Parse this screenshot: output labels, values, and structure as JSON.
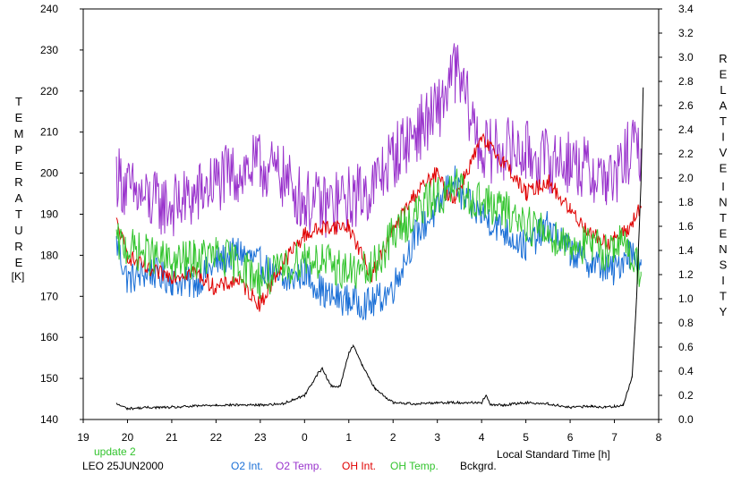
{
  "chart_data": {
    "type": "line",
    "xlabel": "Local Standard Time [h]",
    "ylabel_left": "TEMPERATURE",
    "ylabel_left_unit": "[K]",
    "ylabel_right": "RELATIVE INTENSITY",
    "x_range": [
      19,
      8
    ],
    "x_ticks": [
      "19",
      "20",
      "21",
      "22",
      "23",
      "0",
      "1",
      "2",
      "3",
      "4",
      "5",
      "6",
      "7",
      "8"
    ],
    "y_left_range": [
      140,
      240
    ],
    "y_left_ticks": [
      "140",
      "150",
      "160",
      "170",
      "180",
      "190",
      "200",
      "210",
      "220",
      "230",
      "240"
    ],
    "y_right_range": [
      0.0,
      3.4
    ],
    "y_right_ticks": [
      "0.0",
      "0.2",
      "0.4",
      "0.6",
      "0.8",
      "1.0",
      "1.2",
      "1.4",
      "1.6",
      "1.8",
      "2.0",
      "2.2",
      "2.4",
      "2.6",
      "2.8",
      "3.0",
      "3.2",
      "3.4"
    ],
    "grid": false,
    "annotations": {
      "update": "update 2",
      "station": "LEO 25JUN2000"
    },
    "series": [
      {
        "name": "O2 Int.",
        "color": "#1a6fd6",
        "axis": "left",
        "x": [
          19.75,
          20.0,
          20.5,
          21.0,
          21.5,
          22.0,
          22.5,
          23.0,
          23.5,
          24.0,
          24.5,
          25.0,
          25.5,
          26.0,
          26.5,
          27.0,
          27.2,
          27.4,
          27.6,
          28.0,
          28.5,
          29.0,
          29.5,
          30.0,
          30.5,
          30.8,
          31.0,
          31.3,
          31.6
        ],
        "y": [
          183,
          174,
          176,
          174,
          173,
          178,
          181,
          178,
          173,
          176,
          170,
          169,
          168,
          172,
          185,
          191,
          196,
          198,
          193,
          190,
          186,
          182,
          187,
          181,
          178,
          177,
          176,
          181,
          179
        ],
        "noise": 4
      },
      {
        "name": "O2 Temp.",
        "color": "#9933cc",
        "axis": "left",
        "x": [
          19.75,
          20.0,
          20.5,
          21.0,
          21.5,
          22.0,
          22.5,
          23.0,
          23.5,
          24.0,
          24.5,
          25.0,
          25.5,
          26.0,
          26.5,
          27.0,
          27.2,
          27.4,
          27.6,
          28.0,
          28.5,
          29.0,
          29.5,
          30.0,
          30.5,
          30.8,
          31.0,
          31.3,
          31.6
        ],
        "y": [
          200,
          196,
          193,
          192,
          194,
          198,
          200,
          202,
          199,
          193,
          192,
          194,
          196,
          204,
          210,
          215,
          220,
          225,
          220,
          205,
          206,
          205,
          203,
          203,
          200,
          199,
          198,
          205,
          206
        ],
        "noise": 8
      },
      {
        "name": "OH Int.",
        "color": "#e00000",
        "axis": "left",
        "x": [
          19.75,
          20.0,
          20.5,
          21.0,
          21.5,
          22.0,
          22.5,
          23.0,
          23.5,
          24.0,
          24.5,
          25.0,
          25.5,
          26.0,
          26.5,
          27.0,
          27.2,
          27.4,
          27.6,
          28.0,
          28.5,
          29.0,
          29.5,
          30.0,
          30.5,
          30.8,
          31.0,
          31.3,
          31.6
        ],
        "y": [
          188,
          180,
          176,
          175,
          176,
          172,
          174,
          168,
          178,
          185,
          187,
          187,
          175,
          186,
          195,
          200,
          195,
          194,
          199,
          208,
          203,
          195,
          198,
          191,
          185,
          183,
          184,
          186,
          192
        ],
        "noise": 2
      },
      {
        "name": "OH Temp.",
        "color": "#33c42e",
        "axis": "left",
        "x": [
          19.75,
          20.0,
          20.5,
          21.0,
          21.5,
          22.0,
          22.5,
          23.0,
          23.5,
          24.0,
          24.5,
          25.0,
          25.5,
          26.0,
          26.5,
          27.0,
          27.2,
          27.4,
          27.6,
          28.0,
          28.5,
          29.0,
          29.5,
          30.0,
          30.5,
          30.8,
          31.0,
          31.3,
          31.6
        ],
        "y": [
          183,
          182,
          180,
          178,
          179,
          180,
          178,
          174,
          176,
          180,
          178,
          176,
          176,
          185,
          190,
          195,
          194,
          197,
          195,
          193,
          191,
          188,
          185,
          183,
          182,
          181,
          183,
          182,
          176
        ],
        "noise": 5
      },
      {
        "name": "Bckgrd.",
        "color": "#000000",
        "axis": "right",
        "x": [
          19.75,
          20.0,
          20.5,
          21.0,
          21.5,
          22.0,
          22.5,
          23.0,
          23.5,
          24.0,
          24.3,
          24.4,
          24.6,
          24.8,
          25.0,
          25.1,
          25.3,
          25.6,
          26.0,
          26.5,
          27.0,
          27.5,
          28.0,
          28.1,
          28.2,
          28.5,
          29.0,
          29.5,
          30.0,
          30.5,
          30.8,
          31.0,
          31.2,
          31.4,
          31.5,
          31.6,
          31.65
        ],
        "y": [
          0.13,
          0.09,
          0.1,
          0.1,
          0.11,
          0.12,
          0.12,
          0.12,
          0.13,
          0.2,
          0.38,
          0.42,
          0.28,
          0.27,
          0.55,
          0.62,
          0.45,
          0.25,
          0.14,
          0.13,
          0.14,
          0.14,
          0.14,
          0.2,
          0.12,
          0.12,
          0.14,
          0.13,
          0.1,
          0.11,
          0.1,
          0.11,
          0.12,
          0.35,
          1.0,
          1.95,
          2.75
        ],
        "noise": 0.01
      }
    ]
  }
}
